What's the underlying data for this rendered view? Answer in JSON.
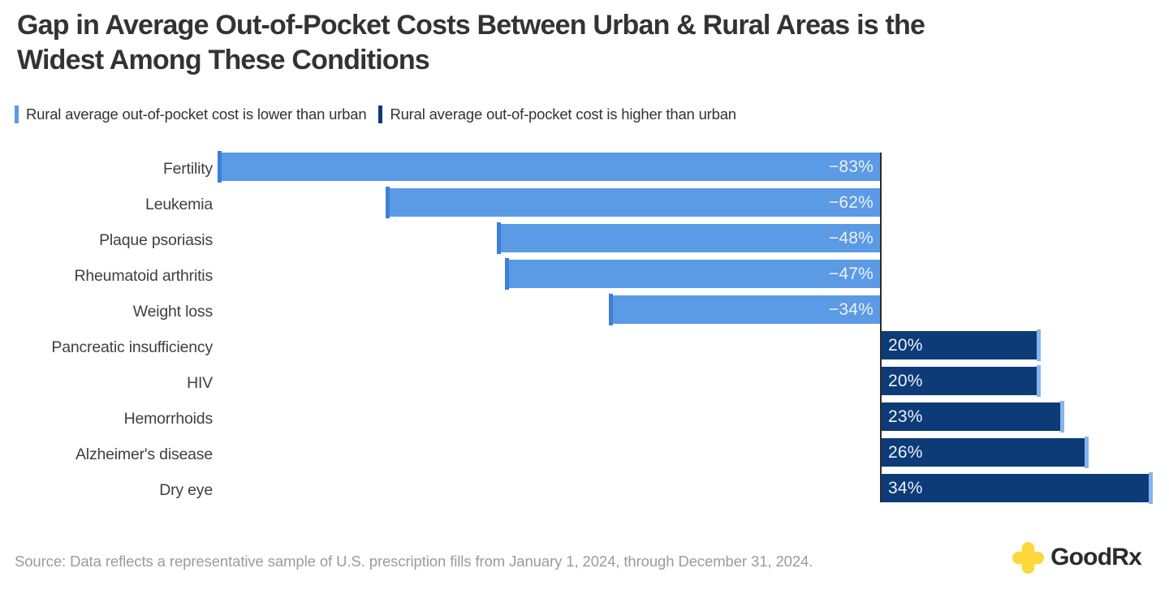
{
  "title": {
    "line1": "Gap in Average Out-of-Pocket Costs Between Urban & Rural Areas is the",
    "line2": "Widest Among These Conditions"
  },
  "legend": {
    "items": [
      {
        "label": "Rural average out-of-pocket cost is lower than urban",
        "color": "#5B9AE5"
      },
      {
        "label": "Rural average out-of-pocket cost is higher than urban",
        "color": "#0C3B78"
      }
    ]
  },
  "chart_data": {
    "type": "bar",
    "orientation": "horizontal",
    "title": "Gap in Average Out-of-Pocket Costs Between Urban & Rural Areas is the Widest Among These Conditions",
    "categories": [
      "Fertility",
      "Leukemia",
      "Plaque psoriasis",
      "Rheumatoid arthritis",
      "Weight loss",
      "Pancreatic insufficiency",
      "HIV",
      "Hemorrhoids",
      "Alzheimer's disease",
      "Dry eye"
    ],
    "values": [
      -83,
      -62,
      -48,
      -47,
      -34,
      20,
      20,
      23,
      26,
      34
    ],
    "value_labels": [
      "−83%",
      "−62%",
      "−48%",
      "−47%",
      "−34%",
      "20%",
      "20%",
      "23%",
      "26%",
      "34%"
    ],
    "unit": "percent",
    "xlim": [
      -83,
      34
    ],
    "baseline": 0,
    "grid": false,
    "legend_position": "top",
    "colors": {
      "negative_bar": "#5B9AE5",
      "negative_bar_tip": "#3E7FD9",
      "positive_bar": "#0C3B78",
      "positive_bar_tip": "#85B3EE",
      "value_label": "#EDF2F9",
      "category_label": "#404040",
      "baseline_line": "#2B2B2B"
    }
  },
  "footer": {
    "source": "Source: Data reflects a representative sample of U.S. prescription fills from January 1, 2024, through December 31, 2024.",
    "logo": {
      "brand_good": "Good",
      "brand_rx": "Rx",
      "plus_color": "#FBD73C",
      "text_color": "#2B2B2B"
    }
  }
}
